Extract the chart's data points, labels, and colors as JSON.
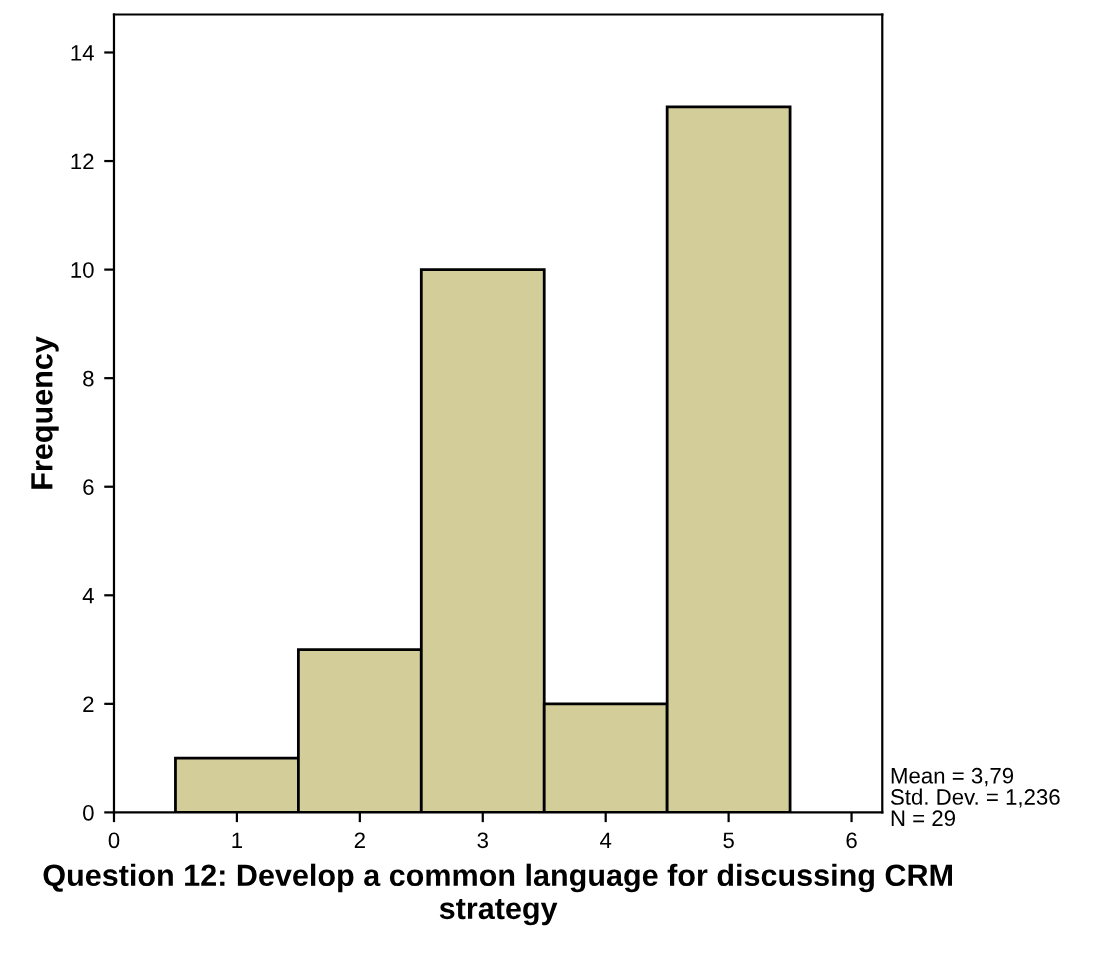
{
  "chart_data": {
    "type": "histogram",
    "xlabel": "Question 12: Develop a common language for discussing CRM strategy",
    "ylabel": "Frequency",
    "bins": [
      0.5,
      1.5,
      2.5,
      3.5,
      4.5,
      5.5
    ],
    "values": [
      1,
      3,
      10,
      2,
      13
    ],
    "color": "#d3cd99",
    "xlim": [
      0,
      6.25
    ],
    "xticks": [
      0,
      1,
      2,
      3,
      4,
      5,
      6
    ],
    "ylim": [
      0,
      14.7
    ],
    "yticks": [
      0,
      2,
      4,
      6,
      8,
      10,
      12,
      14
    ],
    "grid": false,
    "annotations": [
      "Mean = 3,79",
      "Std. Dev. = 1,236",
      "N = 29"
    ]
  }
}
